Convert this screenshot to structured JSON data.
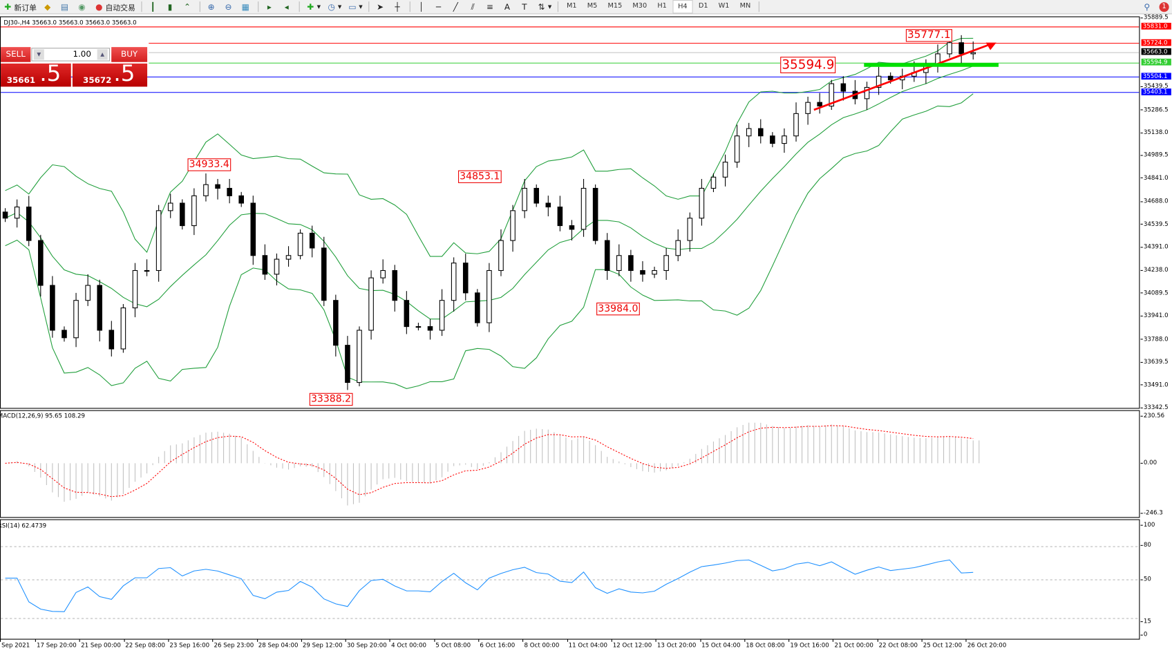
{
  "toolbar": {
    "new_order": "新订单",
    "auto_trading": "自动交易",
    "timeframes": [
      "M1",
      "M5",
      "M15",
      "M30",
      "H1",
      "H4",
      "D1",
      "W1",
      "MN"
    ],
    "active_timeframe": "H4",
    "notification_count": "1"
  },
  "chart": {
    "info": "DJ30-,H4  35663.0 35663.0 35663.0 35663.0",
    "trade_panel": {
      "sell_label": "SELL",
      "buy_label": "BUY",
      "lot": "1.00",
      "sell_price_small": "35661",
      "sell_price_big": ".5",
      "buy_price_small": "35672",
      "buy_price_big": ".5"
    },
    "price_axis": [
      "35889.5",
      "35439.5",
      "35286.5",
      "35138.0",
      "34989.5",
      "34841.0",
      "34688.0",
      "34539.5",
      "34391.0",
      "34238.0",
      "34089.5",
      "33941.0",
      "33788.0",
      "33639.5",
      "33491.0",
      "33342.5"
    ],
    "price_lines": [
      {
        "value": "35831.0",
        "color": "#ff0000"
      },
      {
        "value": "35724.0",
        "color": "#ff0000"
      },
      {
        "value": "35663.0",
        "color": "#000000",
        "line": "#c0c0c0"
      },
      {
        "value": "35594.9",
        "color": "#32cd32"
      },
      {
        "value": "35504.1",
        "color": "#0000ff"
      },
      {
        "value": "35403.1",
        "color": "#0000ff"
      }
    ],
    "annotations": [
      "34933.4",
      "34853.1",
      "33984.0",
      "33388.2",
      "35594.9",
      "35777.1"
    ],
    "colors": {
      "bands": "#1f9e3a",
      "trend": "#ff0000",
      "support": "#00e000",
      "macd_hist": "#c0c0c0",
      "macd_signal": "#ff0000",
      "rsi": "#1e90ff"
    }
  },
  "macd": {
    "label": "MACD(12,26,9) 95.65 108.29",
    "axis": [
      "230.56",
      "0.00",
      "-246.3"
    ]
  },
  "rsi": {
    "label": "RSI(14) 62.4739",
    "axis": [
      "100",
      "80",
      "50",
      "15",
      "0"
    ]
  },
  "time_axis": [
    "Sep 2021",
    "17 Sep 20:00",
    "21 Sep 00:00",
    "22 Sep 08:00",
    "23 Sep 16:00",
    "26 Sep 23:00",
    "28 Sep 04:00",
    "29 Sep 12:00",
    "30 Sep 20:00",
    "4 Oct 00:00",
    "5 Oct 08:00",
    "6 Oct 16:00",
    "8 Oct 00:00",
    "11 Oct 04:00",
    "12 Oct 12:00",
    "13 Oct 20:00",
    "15 Oct 04:00",
    "18 Oct 08:00",
    "19 Oct 16:00",
    "21 Oct 00:00",
    "22 Oct 08:00",
    "25 Oct 12:00",
    "26 Oct 20:00"
  ],
  "chart_data": {
    "type": "candlestick",
    "symbol": "DJ30-",
    "timeframe": "H4",
    "ylim": [
      33342.5,
      35889.5
    ],
    "closes": [
      34582,
      34655,
      34436,
      34143,
      33850,
      33801,
      34045,
      34143,
      33850,
      33728,
      33996,
      34240,
      34240,
      34631,
      34680,
      34533,
      34728,
      34801,
      34777,
      34728,
      34680,
      34338,
      34216,
      34314,
      34338,
      34484,
      34387,
      34045,
      33752,
      33509,
      33850,
      34192,
      34240,
      34045,
      33874,
      33874,
      33850,
      34045,
      34289,
      34094,
      33899,
      34240,
      34436,
      34631,
      34777,
      34680,
      34655,
      34533,
      34509,
      34777,
      34436,
      34240,
      34338,
      34240,
      34216,
      34240,
      34338,
      34436,
      34582,
      34777,
      34850,
      34948,
      35119,
      35167,
      35119,
      35070,
      35119,
      35265,
      35338,
      35314,
      35460,
      35411,
      35362,
      35436,
      35509,
      35485,
      35509,
      35533,
      35582,
      35655,
      35728,
      35655,
      35663
    ]
  }
}
